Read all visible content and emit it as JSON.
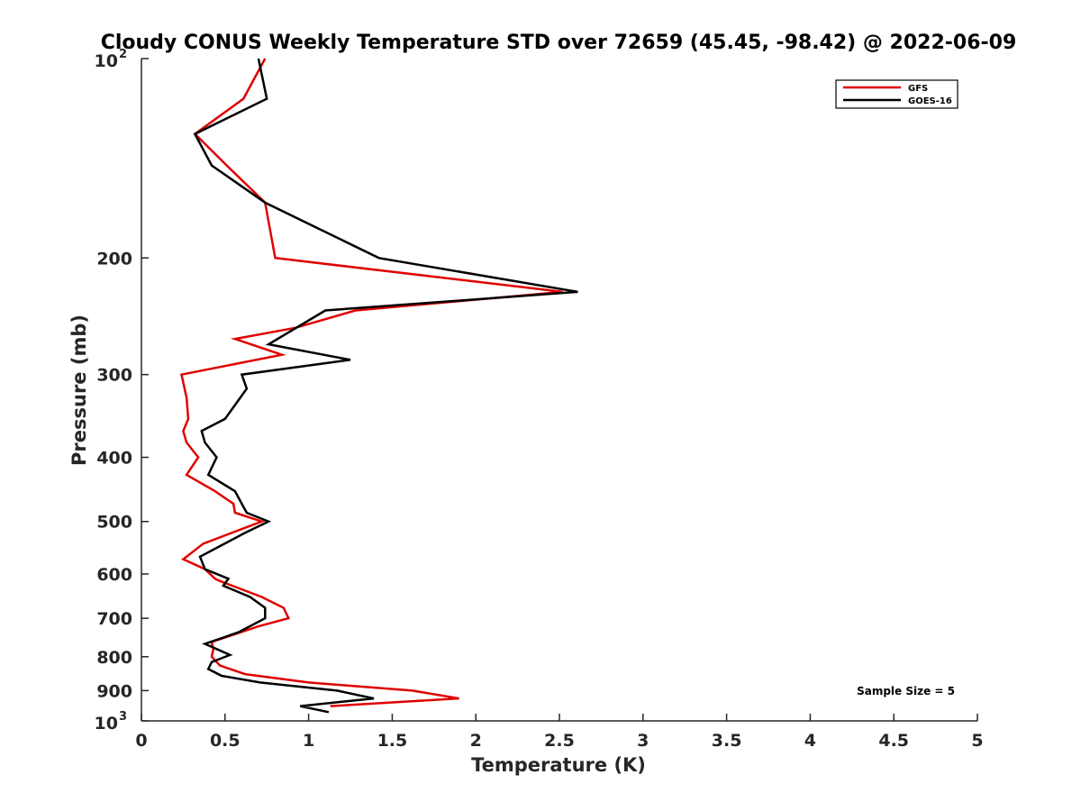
{
  "chart_data": {
    "type": "line",
    "title": "Cloudy CONUS Weekly Temperature STD over 72659 (45.45, -98.42) @ 2022-06-09",
    "xlabel": "Temperature (K)",
    "ylabel": "Pressure (mb)",
    "xlim": [
      0,
      5
    ],
    "ylim": [
      100,
      1000
    ],
    "y_scale": "log",
    "y_reversed": true,
    "grid": false,
    "legend_position": "top-right",
    "x_ticks": [
      "0",
      "0.5",
      "1",
      "1.5",
      "2",
      "2.5",
      "3",
      "3.5",
      "4",
      "4.5",
      "5"
    ],
    "y_ticks": [
      {
        "value": 100,
        "base": "10",
        "sup": "2"
      },
      {
        "value": 200,
        "label": "200"
      },
      {
        "value": 300,
        "label": "300"
      },
      {
        "value": 400,
        "label": "400"
      },
      {
        "value": 500,
        "label": "500"
      },
      {
        "value": 600,
        "label": "600"
      },
      {
        "value": 700,
        "label": "700"
      },
      {
        "value": 800,
        "label": "800"
      },
      {
        "value": 900,
        "label": "900"
      },
      {
        "value": 1000,
        "base": "10",
        "sup": "3"
      }
    ],
    "annotation": "Sample Size = 5",
    "series": [
      {
        "name": "GFS",
        "color": "#e00000",
        "points": [
          [
            0.74,
            100
          ],
          [
            0.61,
            115
          ],
          [
            0.32,
            130
          ],
          [
            0.51,
            145
          ],
          [
            0.74,
            165
          ],
          [
            0.8,
            200
          ],
          [
            2.52,
            225
          ],
          [
            1.28,
            240
          ],
          [
            0.92,
            255
          ],
          [
            0.56,
            265
          ],
          [
            0.84,
            280
          ],
          [
            0.24,
            300
          ],
          [
            0.27,
            325
          ],
          [
            0.28,
            350
          ],
          [
            0.25,
            365
          ],
          [
            0.27,
            380
          ],
          [
            0.34,
            400
          ],
          [
            0.27,
            425
          ],
          [
            0.44,
            450
          ],
          [
            0.55,
            470
          ],
          [
            0.56,
            485
          ],
          [
            0.72,
            500
          ],
          [
            0.37,
            540
          ],
          [
            0.25,
            570
          ],
          [
            0.38,
            590
          ],
          [
            0.44,
            610
          ],
          [
            0.47,
            615
          ],
          [
            0.72,
            650
          ],
          [
            0.85,
            675
          ],
          [
            0.88,
            700
          ],
          [
            0.7,
            720
          ],
          [
            0.42,
            760
          ],
          [
            0.43,
            780
          ],
          [
            0.42,
            800
          ],
          [
            0.47,
            825
          ],
          [
            0.62,
            850
          ],
          [
            1.0,
            875
          ],
          [
            1.62,
            900
          ],
          [
            1.9,
            925
          ],
          [
            1.13,
            950
          ]
        ]
      },
      {
        "name": "GOES-16",
        "color": "#000000",
        "points": [
          [
            0.7,
            100
          ],
          [
            0.75,
            115
          ],
          [
            0.32,
            130
          ],
          [
            0.42,
            145
          ],
          [
            0.74,
            165
          ],
          [
            1.42,
            200
          ],
          [
            2.61,
            225
          ],
          [
            1.1,
            240
          ],
          [
            0.76,
            270
          ],
          [
            1.25,
            285
          ],
          [
            0.6,
            300
          ],
          [
            0.63,
            315
          ],
          [
            0.5,
            350
          ],
          [
            0.36,
            365
          ],
          [
            0.38,
            380
          ],
          [
            0.45,
            400
          ],
          [
            0.4,
            425
          ],
          [
            0.56,
            450
          ],
          [
            0.61,
            475
          ],
          [
            0.63,
            485
          ],
          [
            0.76,
            500
          ],
          [
            0.62,
            520
          ],
          [
            0.35,
            565
          ],
          [
            0.38,
            590
          ],
          [
            0.52,
            610
          ],
          [
            0.49,
            625
          ],
          [
            0.65,
            650
          ],
          [
            0.74,
            675
          ],
          [
            0.74,
            700
          ],
          [
            0.58,
            735
          ],
          [
            0.38,
            765
          ],
          [
            0.53,
            795
          ],
          [
            0.42,
            815
          ],
          [
            0.4,
            835
          ],
          [
            0.48,
            855
          ],
          [
            0.71,
            875
          ],
          [
            1.17,
            900
          ],
          [
            1.39,
            925
          ],
          [
            0.95,
            950
          ],
          [
            1.12,
            970
          ]
        ]
      }
    ]
  }
}
